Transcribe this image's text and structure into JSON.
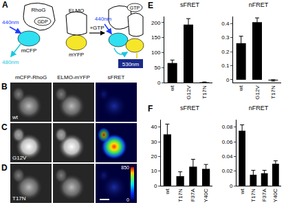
{
  "diagram": {
    "panel": "A",
    "left": {
      "protein": "RhoG",
      "nucleotide": "GDP",
      "donor": "mCFP",
      "excitation": "440nm",
      "emission": "480nm"
    },
    "effector": {
      "protein": "ELMO",
      "acceptor": "mYFP"
    },
    "step": "+GTP",
    "right": {
      "nucleotide": "GTP",
      "excitation": "440nm",
      "emission": "530nm"
    }
  },
  "images": {
    "panels": [
      "B",
      "C",
      "D"
    ],
    "columns": [
      "mCFP-RhoG",
      "ELMO-mYFP",
      "sFRET"
    ],
    "rows": [
      "wt",
      "G12V",
      "T17N"
    ],
    "colorbar": {
      "range": [
        0,
        850
      ],
      "ticks": [
        0,
        850
      ]
    }
  },
  "chart_data": [
    {
      "panel": "E",
      "type": "bar",
      "title": "sFRET",
      "categories": [
        "wt",
        "G12V",
        "T17N"
      ],
      "values": [
        65,
        193,
        1
      ],
      "errors": [
        10,
        20,
        1
      ],
      "color": "#000000",
      "ylim": [
        0,
        220
      ],
      "yticks": [
        0,
        50,
        100,
        150,
        200
      ]
    },
    {
      "panel": "E",
      "type": "bar",
      "title": "nFRET",
      "categories": [
        "wt",
        "G12V",
        "T17N"
      ],
      "values": [
        0.26,
        0.41,
        -0.005
      ],
      "errors": [
        0.05,
        0.03,
        0.005
      ],
      "color": "#000000",
      "ylim": [
        -0.02,
        0.45
      ],
      "yticks": [
        0,
        0.1,
        0.2,
        0.3,
        0.4
      ]
    },
    {
      "panel": "F",
      "type": "bar",
      "title": "sFRET",
      "categories": [
        "wt",
        "T17N",
        "F37A",
        "Y40C"
      ],
      "values": [
        35,
        6.5,
        13,
        11.5
      ],
      "errors": [
        7,
        3,
        5,
        3
      ],
      "color": "#000000",
      "ylim": [
        0,
        45
      ],
      "yticks": [
        0,
        10,
        20,
        30,
        40
      ]
    },
    {
      "panel": "F",
      "type": "bar",
      "title": "nFRET",
      "categories": [
        "wt",
        "T17N",
        "F37A",
        "Y40C"
      ],
      "values": [
        0.075,
        0.015,
        0.017,
        0.03
      ],
      "errors": [
        0.008,
        0.006,
        0.004,
        0.004
      ],
      "color": "#000000",
      "ylim": [
        0,
        0.09
      ],
      "yticks": [
        0,
        0.02,
        0.04,
        0.06,
        0.08
      ]
    }
  ]
}
